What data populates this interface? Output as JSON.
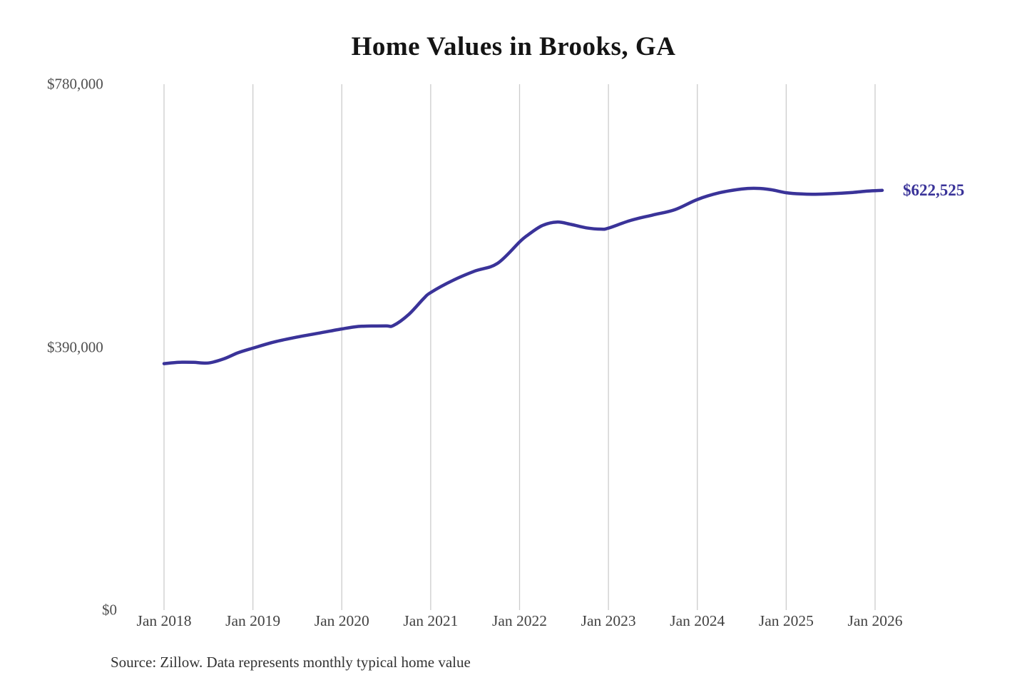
{
  "title": "Home Values in Brooks, GA",
  "source_note": "Source: Zillow. Data represents monthly typical home value",
  "end_label": "$622,525",
  "colors": {
    "background": "#ffffff",
    "line": "#3a3399",
    "end_label_text": "#3a3399",
    "grid": "#cccccc",
    "title_text": "#141414",
    "y_axis_text": "#4f4f4f",
    "x_axis_text": "#424242",
    "source_text": "#333333"
  },
  "chart_data": {
    "type": "line",
    "title": "Home Values in Brooks, GA",
    "xlabel": "",
    "ylabel": "",
    "grid": "vertical-only",
    "legend": "none",
    "xlim": [
      2018,
      2026.15
    ],
    "ylim": [
      0,
      780000
    ],
    "y_ticks": [
      {
        "value": 0,
        "label": "$0"
      },
      {
        "value": 390000,
        "label": "$390,000"
      },
      {
        "value": 780000,
        "label": "$780,000"
      }
    ],
    "x_ticks": [
      {
        "year": 2018,
        "label": "Jan 2018"
      },
      {
        "year": 2019,
        "label": "Jan 2019"
      },
      {
        "year": 2020,
        "label": "Jan 2020"
      },
      {
        "year": 2021,
        "label": "Jan 2021"
      },
      {
        "year": 2022,
        "label": "Jan 2022"
      },
      {
        "year": 2023,
        "label": "Jan 2023"
      },
      {
        "year": 2024,
        "label": "Jan 2024"
      },
      {
        "year": 2025,
        "label": "Jan 2025"
      },
      {
        "year": 2026,
        "label": "Jan 2026"
      }
    ],
    "final_value": 622525,
    "series": [
      {
        "name": "Monthly typical home value",
        "points": [
          [
            2018.0,
            365500
          ],
          [
            2018.17,
            367500
          ],
          [
            2018.33,
            367500
          ],
          [
            2018.5,
            366500
          ],
          [
            2018.67,
            372500
          ],
          [
            2018.83,
            381500
          ],
          [
            2019.0,
            388500
          ],
          [
            2019.25,
            398000
          ],
          [
            2019.5,
            405000
          ],
          [
            2019.75,
            411000
          ],
          [
            2020.0,
            417000
          ],
          [
            2020.17,
            420500
          ],
          [
            2020.33,
            421300
          ],
          [
            2020.5,
            421500
          ],
          [
            2020.58,
            422000
          ],
          [
            2020.75,
            438000
          ],
          [
            2020.92,
            462000
          ],
          [
            2021.0,
            471000
          ],
          [
            2021.25,
            489000
          ],
          [
            2021.5,
            503000
          ],
          [
            2021.75,
            514000
          ],
          [
            2022.0,
            546000
          ],
          [
            2022.08,
            555000
          ],
          [
            2022.25,
            570000
          ],
          [
            2022.42,
            575500
          ],
          [
            2022.58,
            572000
          ],
          [
            2022.75,
            567000
          ],
          [
            2022.92,
            565000
          ],
          [
            2023.0,
            566500
          ],
          [
            2023.25,
            578000
          ],
          [
            2023.5,
            586000
          ],
          [
            2023.75,
            594000
          ],
          [
            2024.0,
            609000
          ],
          [
            2024.25,
            619000
          ],
          [
            2024.5,
            624500
          ],
          [
            2024.67,
            625500
          ],
          [
            2024.83,
            623500
          ],
          [
            2025.0,
            619000
          ],
          [
            2025.17,
            617200
          ],
          [
            2025.33,
            616800
          ],
          [
            2025.5,
            617500
          ],
          [
            2025.75,
            619500
          ],
          [
            2025.92,
            621500
          ],
          [
            2026.08,
            622525
          ]
        ]
      }
    ]
  }
}
